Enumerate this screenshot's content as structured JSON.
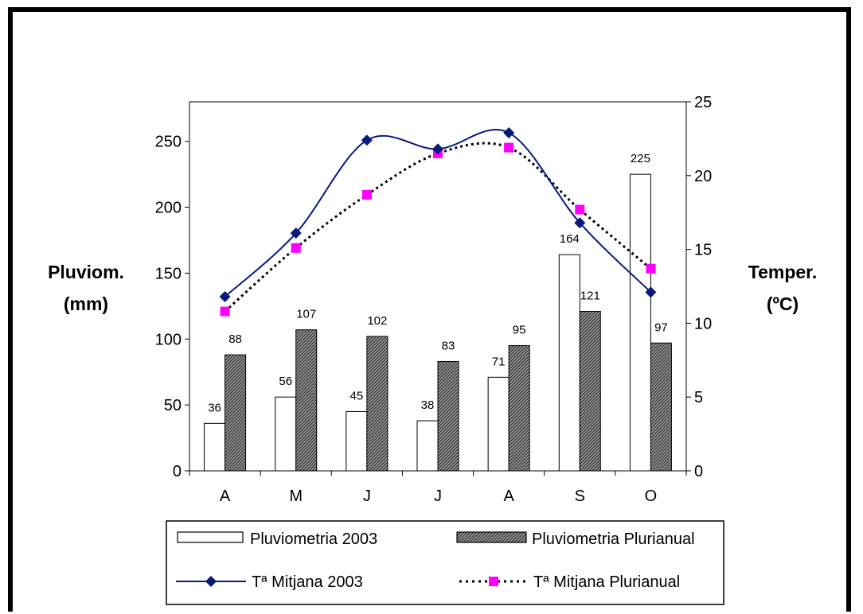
{
  "chart_data": {
    "type": "bar",
    "categories": [
      "A",
      "M",
      "J",
      "J",
      "A",
      "S",
      "O"
    ],
    "left_axis": {
      "label_line1": "Pluviom.",
      "label_line2": "(mm)",
      "ylim": [
        0,
        280
      ],
      "ticks": [
        0,
        50,
        100,
        150,
        200,
        250
      ]
    },
    "right_axis": {
      "label_line1": "Temper.",
      "label_line2": "(ºC)",
      "ylim": [
        0,
        25
      ],
      "ticks": [
        0,
        5,
        10,
        15,
        20,
        25
      ]
    },
    "series": [
      {
        "name": "Pluviometria 2003",
        "kind": "bar",
        "axis": "left",
        "values": [
          36,
          56,
          45,
          38,
          71,
          164,
          225
        ],
        "color": "#ffffff"
      },
      {
        "name": "Pluviometria Plurianual",
        "kind": "bar",
        "axis": "left",
        "values": [
          88,
          107,
          102,
          83,
          95,
          121,
          97
        ],
        "color": "#888888",
        "pattern": "hatched"
      },
      {
        "name": "Tª Mitjana 2003",
        "kind": "line",
        "axis": "right",
        "values": [
          11.8,
          16.1,
          22.4,
          21.8,
          22.9,
          16.8,
          12.1
        ],
        "color": "#0a1a7a",
        "marker": "diamond"
      },
      {
        "name": "Tª Mitjana Plurianual",
        "kind": "line",
        "axis": "right",
        "values": [
          10.8,
          15.1,
          18.7,
          21.5,
          21.9,
          17.7,
          13.7
        ],
        "color": "#000000",
        "dash": "dotted",
        "marker_color": "#ff00ff",
        "marker": "square"
      }
    ],
    "grid": false,
    "legend_position": "bottom"
  }
}
